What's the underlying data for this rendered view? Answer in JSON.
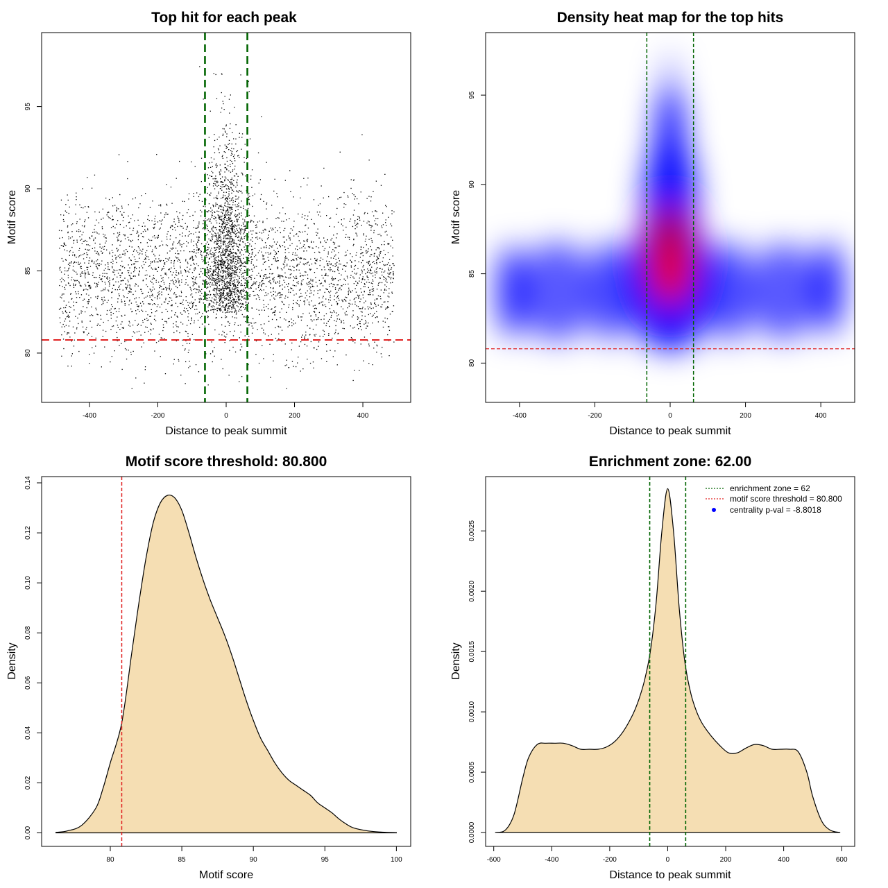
{
  "colors": {
    "threshold": "#e02020",
    "zone": "#006400",
    "fill": "#f5deb3",
    "centrality": "#0000ff",
    "heat_low": "#0000ff",
    "heat_high": "#ff0000"
  },
  "chart_data": [
    {
      "id": "scatter",
      "type": "scatter",
      "title": "Top hit for each peak",
      "xlabel": "Distance to peak summit",
      "ylabel": "Motif score",
      "xlim": [
        -540,
        540
      ],
      "ylim": [
        77,
        99.5
      ],
      "xticks": [
        -400,
        -200,
        0,
        200,
        400
      ],
      "yticks": [
        80,
        85,
        90,
        95
      ],
      "threshold_y": 80.8,
      "zone_x": [
        -62,
        62
      ],
      "n_points": 5000
    },
    {
      "id": "heatmap",
      "type": "heatmap",
      "title": "Density heat map for the top hits",
      "xlabel": "Distance to peak summit",
      "ylabel": "Motif score",
      "xlim": [
        -490,
        490
      ],
      "ylim": [
        77.8,
        98.5
      ],
      "xticks": [
        -400,
        -200,
        0,
        200,
        400
      ],
      "yticks": [
        80,
        85,
        90,
        95
      ],
      "threshold_y": 80.8,
      "zone_x": [
        -62,
        62
      ]
    },
    {
      "id": "score_density",
      "type": "area",
      "title": "Motif score threshold: 80.800",
      "xlabel": "Motif score",
      "ylabel": "Density",
      "xlim": [
        75.2,
        101.0
      ],
      "ylim": [
        -0.0054,
        0.1425
      ],
      "xticks": [
        80,
        85,
        90,
        95,
        100
      ],
      "yticks": [
        0.0,
        0.02,
        0.04,
        0.06,
        0.08,
        0.1,
        0.12,
        0.14
      ],
      "ytick_labels": [
        "0.00",
        "0.02",
        "0.04",
        "0.06",
        "0.08",
        "0.10",
        "0.12",
        "0.14"
      ],
      "threshold_x": 80.8,
      "x": [
        76.2,
        77,
        78,
        79,
        79.5,
        80,
        80.8,
        81.5,
        82,
        82.5,
        83,
        83.5,
        84,
        84.5,
        85,
        85.5,
        86,
        86.5,
        87,
        87.5,
        88,
        88.5,
        89,
        89.5,
        90,
        90.5,
        91,
        91.5,
        92,
        92.5,
        93,
        93.5,
        94,
        94.5,
        95,
        95.5,
        96,
        96.5,
        97,
        98,
        99,
        100
      ],
      "y": [
        0.0002,
        0.0008,
        0.003,
        0.01,
        0.018,
        0.028,
        0.044,
        0.072,
        0.092,
        0.11,
        0.124,
        0.132,
        0.135,
        0.134,
        0.129,
        0.12,
        0.11,
        0.101,
        0.093,
        0.086,
        0.079,
        0.071,
        0.062,
        0.053,
        0.045,
        0.038,
        0.033,
        0.028,
        0.024,
        0.021,
        0.019,
        0.017,
        0.015,
        0.012,
        0.01,
        0.008,
        0.0055,
        0.0035,
        0.002,
        0.0008,
        0.0003,
        0.0001
      ]
    },
    {
      "id": "distance_density",
      "type": "area",
      "title": "Enrichment zone: 62.00",
      "xlabel": "Distance to peak summit",
      "ylabel": "Density",
      "xlim": [
        -628,
        645
      ],
      "ylim": [
        -0.000115,
        0.00295
      ],
      "xticks": [
        -600,
        -400,
        -200,
        0,
        200,
        400,
        600
      ],
      "yticks": [
        0.0,
        0.0005,
        0.001,
        0.0015,
        0.002,
        0.0025
      ],
      "ytick_labels": [
        "0.0000",
        "0.0005",
        "0.0010",
        "0.0015",
        "0.0020",
        "0.0025"
      ],
      "zone_x": [
        -62,
        62
      ],
      "x": [
        -595,
        -560,
        -530,
        -500,
        -480,
        -450,
        -420,
        -390,
        -360,
        -330,
        -300,
        -270,
        -240,
        -210,
        -180,
        -150,
        -120,
        -100,
        -80,
        -60,
        -40,
        -20,
        0,
        20,
        40,
        60,
        80,
        100,
        120,
        150,
        180,
        210,
        240,
        270,
        300,
        330,
        360,
        390,
        420,
        450,
        480,
        500,
        530,
        560,
        595
      ],
      "y": [
        0.0,
        2e-05,
        0.00015,
        0.00045,
        0.00062,
        0.00073,
        0.00074,
        0.00074,
        0.00074,
        0.00072,
        0.00069,
        0.00069,
        0.00069,
        0.00071,
        0.00076,
        0.00085,
        0.00098,
        0.0011,
        0.00126,
        0.0015,
        0.0019,
        0.0025,
        0.00285,
        0.0025,
        0.00185,
        0.0014,
        0.00115,
        0.001,
        0.0009,
        0.0008,
        0.00072,
        0.00066,
        0.00066,
        0.0007,
        0.00073,
        0.00072,
        0.00069,
        0.00069,
        0.00069,
        0.00067,
        0.0005,
        0.0003,
        0.0001,
        2e-05,
        0.0
      ],
      "legend": [
        {
          "label": "enrichment zone = 62",
          "kind": "dotted-line",
          "color": "#006400"
        },
        {
          "label": "motif score threshold = 80.800",
          "kind": "dotted-line",
          "color": "#e02020"
        },
        {
          "label": "centrality p-val = -8.8018",
          "kind": "point",
          "color": "#0000ff"
        }
      ],
      "legend_position": "top-right"
    }
  ]
}
